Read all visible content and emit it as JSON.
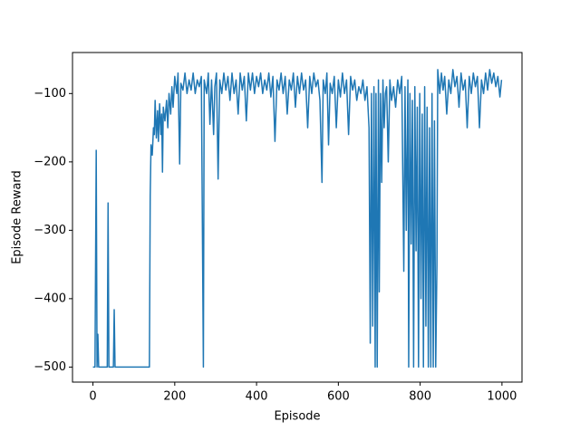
{
  "chart_data": {
    "type": "line",
    "xlabel": "Episode",
    "ylabel": "Episode Reward",
    "color": "#1f77b4",
    "xlim": [
      -50,
      1049
    ],
    "ylim": [
      -522,
      -40
    ],
    "xticks": [
      0,
      200,
      400,
      600,
      800,
      1000
    ],
    "yticks": [
      {
        "value": -500,
        "label": "−500"
      },
      {
        "value": -400,
        "label": "−400"
      },
      {
        "value": -300,
        "label": "−300"
      },
      {
        "value": -200,
        "label": "−200"
      },
      {
        "value": -100,
        "label": "−100"
      }
    ],
    "x": [
      0,
      5,
      8,
      10,
      12,
      14,
      35,
      37,
      39,
      50,
      52,
      54,
      100,
      138,
      140,
      142,
      145,
      148,
      150,
      152,
      155,
      158,
      160,
      163,
      166,
      168,
      170,
      172,
      176,
      180,
      183,
      186,
      190,
      193,
      196,
      200,
      205,
      208,
      212,
      215,
      220,
      225,
      230,
      235,
      240,
      245,
      250,
      255,
      260,
      265,
      270,
      272,
      278,
      282,
      286,
      290,
      295,
      298,
      302,
      306,
      310,
      315,
      320,
      325,
      330,
      335,
      340,
      345,
      350,
      355,
      360,
      365,
      370,
      375,
      380,
      385,
      390,
      395,
      400,
      405,
      410,
      415,
      420,
      425,
      430,
      435,
      440,
      445,
      450,
      455,
      460,
      465,
      470,
      475,
      480,
      485,
      490,
      495,
      500,
      505,
      510,
      515,
      520,
      525,
      530,
      535,
      540,
      545,
      550,
      555,
      560,
      563,
      568,
      572,
      576,
      580,
      585,
      590,
      595,
      600,
      605,
      610,
      615,
      620,
      625,
      630,
      635,
      640,
      645,
      650,
      655,
      660,
      665,
      670,
      675,
      678,
      681,
      684,
      687,
      690,
      692,
      695,
      698,
      700,
      703,
      706,
      709,
      712,
      715,
      718,
      722,
      726,
      730,
      735,
      740,
      745,
      750,
      755,
      760,
      763,
      766,
      770,
      772,
      775,
      778,
      781,
      784,
      787,
      790,
      793,
      796,
      799,
      802,
      805,
      808,
      811,
      814,
      817,
      820,
      823,
      826,
      829,
      832,
      835,
      838,
      841,
      843,
      848,
      852,
      856,
      860,
      865,
      870,
      875,
      880,
      885,
      890,
      895,
      900,
      905,
      910,
      915,
      920,
      925,
      930,
      935,
      940,
      945,
      950,
      955,
      960,
      965,
      970,
      975,
      980,
      985,
      990,
      995,
      999
    ],
    "values": [
      -500,
      -500,
      -183,
      -500,
      -452,
      -500,
      -500,
      -260,
      -500,
      -500,
      -416,
      -500,
      -500,
      -500,
      -250,
      -175,
      -190,
      -150,
      -160,
      -110,
      -165,
      -125,
      -170,
      -115,
      -160,
      -130,
      -215,
      -120,
      -140,
      -110,
      -150,
      -100,
      -130,
      -90,
      -120,
      -75,
      -100,
      -70,
      -203,
      -85,
      -95,
      -70,
      -100,
      -80,
      -95,
      -70,
      -100,
      -80,
      -90,
      -75,
      -500,
      -80,
      -100,
      -70,
      -145,
      -80,
      -160,
      -90,
      -70,
      -225,
      -80,
      -100,
      -70,
      -95,
      -75,
      -110,
      -70,
      -100,
      -80,
      -130,
      -70,
      -95,
      -75,
      -140,
      -70,
      -95,
      -70,
      -100,
      -75,
      -90,
      -70,
      -100,
      -80,
      -95,
      -70,
      -105,
      -75,
      -170,
      -80,
      -95,
      -70,
      -100,
      -75,
      -130,
      -80,
      -95,
      -70,
      -120,
      -75,
      -100,
      -70,
      -95,
      -80,
      -150,
      -75,
      -100,
      -70,
      -90,
      -80,
      -110,
      -230,
      -80,
      -100,
      -70,
      -175,
      -85,
      -100,
      -75,
      -150,
      -80,
      -105,
      -70,
      -100,
      -80,
      -160,
      -75,
      -95,
      -80,
      -110,
      -90,
      -100,
      -80,
      -110,
      -90,
      -150,
      -465,
      -100,
      -440,
      -90,
      -500,
      -100,
      -500,
      -80,
      -390,
      -100,
      -230,
      -80,
      -150,
      -100,
      -90,
      -200,
      -80,
      -110,
      -90,
      -120,
      -80,
      -100,
      -75,
      -360,
      -90,
      -300,
      -80,
      -500,
      -100,
      -320,
      -110,
      -500,
      -90,
      -330,
      -120,
      -500,
      -100,
      -400,
      -130,
      -500,
      -90,
      -440,
      -120,
      -500,
      -150,
      -500,
      -100,
      -500,
      -140,
      -500,
      -350,
      -65,
      -100,
      -70,
      -95,
      -75,
      -130,
      -80,
      -100,
      -65,
      -90,
      -75,
      -120,
      -70,
      -95,
      -80,
      -150,
      -75,
      -100,
      -70,
      -90,
      -75,
      -150,
      -80,
      -100,
      -70,
      -95,
      -65,
      -85,
      -70,
      -90,
      -75,
      -105,
      -80
    ]
  }
}
